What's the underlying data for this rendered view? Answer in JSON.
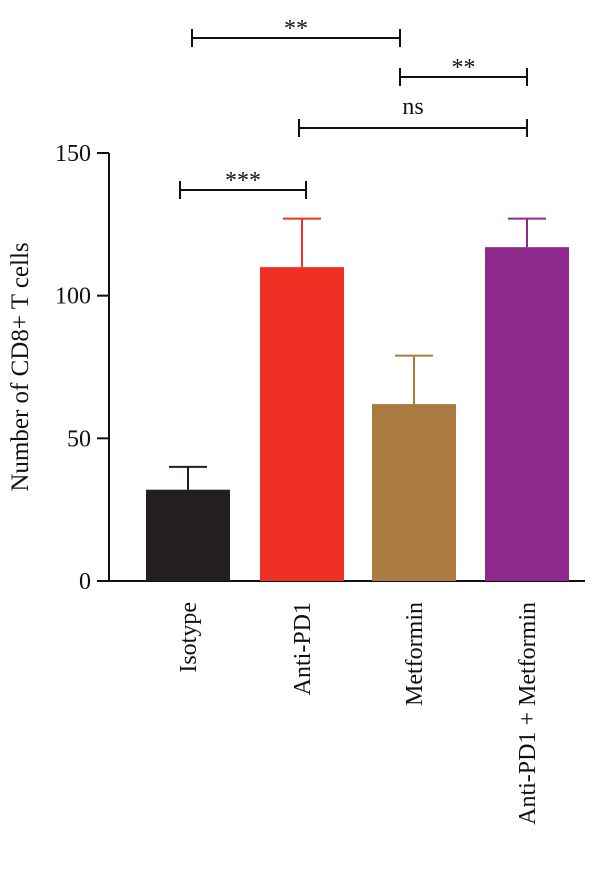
{
  "chart_data": {
    "type": "bar",
    "ylabel": "Number of CD8+ T cells",
    "ylim": [
      0,
      150
    ],
    "yticks": [
      0,
      50,
      100,
      150
    ],
    "grid": false,
    "categories": [
      "Isotype",
      "Anti-PD1",
      "Metformin",
      "Anti-PD1 + Metformin"
    ],
    "values": [
      32,
      110,
      62,
      117
    ],
    "error": [
      8,
      17,
      17,
      10
    ],
    "colors": [
      "#231f20",
      "#ee3124",
      "#a97b41",
      "#8f2a8d"
    ],
    "significance": [
      {
        "from": 0,
        "to": 1,
        "label": "***"
      },
      {
        "from": 1,
        "to": 3,
        "label": "ns"
      },
      {
        "from": 2,
        "to": 3,
        "label": "**"
      },
      {
        "from": 0,
        "to": 2,
        "label": "**"
      }
    ]
  }
}
